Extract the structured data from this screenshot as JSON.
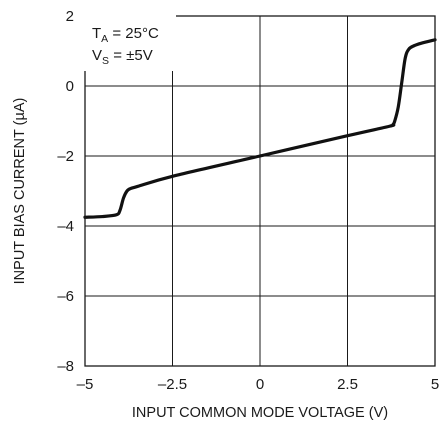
{
  "chart_data": {
    "type": "line",
    "xlabel": "INPUT COMMON MODE VOLTAGE (V)",
    "ylabel": "INPUT BIAS CURRENT (µA)",
    "xlim": [
      -5,
      5
    ],
    "ylim": [
      -8,
      2
    ],
    "x_ticks": [
      -5,
      -2.5,
      0,
      2.5,
      5
    ],
    "x_tick_labels": [
      "–5",
      "–2.5",
      "0",
      "2.5",
      "5"
    ],
    "y_ticks": [
      2,
      0,
      -2,
      -4,
      -6,
      -8
    ],
    "y_tick_labels": [
      "2",
      "0",
      "–2",
      "–4",
      "–6",
      "–8"
    ],
    "x_grid": [
      -5,
      -2.5,
      0,
      2.5,
      5
    ],
    "y_grid": [
      2,
      0,
      -2,
      -4,
      -6,
      -8
    ],
    "grid": true,
    "annotation": {
      "line1_main": "T",
      "line1_sub": "A",
      "line1_rest": " = 25°C",
      "line2_main": "V",
      "line2_sub": "S",
      "line2_rest": " = ±5V"
    },
    "series": [
      {
        "x": [
          -5,
          -4.5,
          -4.1,
          -4.0,
          -3.9,
          -3.8,
          -3.7,
          -3.5,
          -2.5,
          0,
          2.5,
          3.7,
          3.8,
          3.85,
          3.95,
          4.05,
          4.15,
          4.25,
          4.4,
          4.6,
          5
        ],
        "y": [
          -3.75,
          -3.73,
          -3.68,
          -3.55,
          -3.2,
          -3.0,
          -2.93,
          -2.87,
          -2.58,
          -2.0,
          -1.42,
          -1.15,
          -1.1,
          -1.0,
          -0.6,
          0.1,
          0.8,
          1.05,
          1.15,
          1.22,
          1.32
        ]
      }
    ]
  }
}
